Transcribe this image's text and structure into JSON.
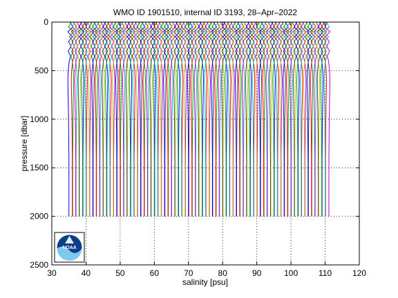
{
  "chart_data": {
    "type": "line",
    "title": "WMO ID 1901510, internal ID 3193, 28–Apr–2022",
    "xlabel": "salinity [psu]",
    "ylabel": "pressure [dbar]",
    "xlim": [
      30,
      120
    ],
    "ylim": [
      0,
      2500
    ],
    "y_reversed": true,
    "xticks": [
      30,
      40,
      50,
      60,
      70,
      80,
      90,
      100,
      110,
      120
    ],
    "yticks": [
      0,
      500,
      1000,
      1500,
      2000,
      2500
    ],
    "grid": true,
    "grid_style": "dotted",
    "colors": [
      "#0000ff",
      "#00a000",
      "#ff0000",
      "#00bfbf",
      "#bf00bf",
      "#bfbf00",
      "#404040"
    ],
    "profile_offset_step_psu": 0.5,
    "series_pressure_dbar": [
      0,
      50,
      100,
      150,
      200,
      250,
      300,
      350,
      400,
      500,
      600,
      800,
      1000,
      1200,
      1400,
      1600,
      1800,
      2000
    ],
    "series_salinity_shape_psu": [
      0.0,
      0.9,
      -0.6,
      0.7,
      -0.4,
      0.3,
      -0.5,
      0.2,
      -0.2,
      -0.5,
      -0.6,
      -0.5,
      -0.4,
      -0.35,
      -0.3,
      -0.3,
      -0.3,
      -0.3
    ],
    "first_profile_base_salinity_psu": 35.3,
    "last_profile_base_salinity_psu": 110.8,
    "profile_count": 152
  },
  "logo": {
    "text": "NOAA"
  }
}
